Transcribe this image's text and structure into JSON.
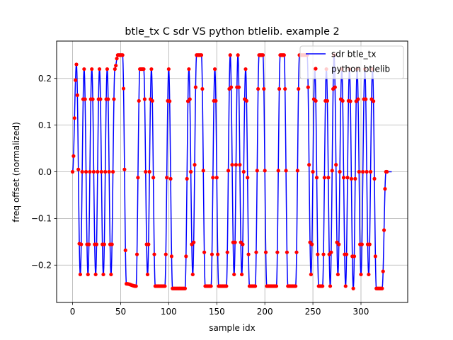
{
  "chart_data": {
    "type": "line",
    "title": "btle_tx C sdr VS python btlelib. example 2",
    "xlabel": "sample idx",
    "ylabel": "freq offset (normalized)",
    "xlim": [
      -16.6,
      348.6
    ],
    "ylim": [
      -0.28,
      0.28
    ],
    "xticks": [
      0,
      50,
      100,
      150,
      200,
      250,
      300
    ],
    "yticks": [
      -0.2,
      -0.1,
      0.0,
      0.1,
      0.2
    ],
    "xtick_labels": [
      "0",
      "50",
      "100",
      "150",
      "200",
      "250",
      "300"
    ],
    "ytick_labels": [
      "−0.2",
      "−0.1",
      "0.0",
      "0.1",
      "0.2"
    ],
    "grid": true,
    "legend_position": "top-right",
    "series": [
      {
        "name": "sdr btle_tx",
        "style": "line",
        "color": "#0000ff"
      },
      {
        "name": "python btlelib",
        "style": "points",
        "color": "#ff0000"
      }
    ],
    "waveform": {
      "description_free": true,
      "samples": 332,
      "amplitude": 0.25,
      "segments": [
        [
          0,
          4,
          0.0,
          0.23
        ],
        [
          4,
          8,
          0.23,
          -0.22
        ],
        [
          8,
          12,
          -0.22,
          0.22
        ],
        [
          12,
          16,
          0.22,
          -0.22
        ],
        [
          16,
          20,
          -0.22,
          0.22
        ],
        [
          20,
          24,
          0.22,
          -0.22
        ],
        [
          24,
          28,
          -0.22,
          0.22
        ],
        [
          28,
          32,
          0.22,
          -0.22
        ],
        [
          32,
          36,
          -0.22,
          0.22
        ],
        [
          36,
          40,
          0.22,
          -0.22
        ],
        [
          40,
          44,
          -0.22,
          0.22
        ],
        [
          44,
          47,
          0.22,
          0.25
        ],
        [
          47,
          52,
          0.25,
          0.25
        ],
        [
          52,
          56,
          0.25,
          -0.24
        ],
        [
          56,
          66,
          -0.24,
          -0.245
        ],
        [
          66,
          70,
          -0.245,
          0.22
        ],
        [
          70,
          74,
          0.22,
          0.22
        ],
        [
          74,
          78,
          0.22,
          -0.22
        ],
        [
          78,
          82,
          -0.22,
          0.22
        ],
        [
          82,
          86,
          0.22,
          -0.245
        ],
        [
          86,
          96,
          -0.245,
          -0.245
        ],
        [
          96,
          100,
          -0.245,
          0.22
        ],
        [
          100,
          104,
          0.22,
          -0.25
        ],
        [
          104,
          117,
          -0.25,
          -0.25
        ],
        [
          117,
          121,
          -0.25,
          0.22
        ],
        [
          121,
          125,
          0.22,
          -0.22
        ],
        [
          125,
          129,
          -0.22,
          0.25
        ],
        [
          129,
          134,
          0.25,
          0.25
        ],
        [
          134,
          138,
          0.25,
          -0.245
        ],
        [
          138,
          144,
          -0.245,
          -0.245
        ],
        [
          144,
          148,
          -0.245,
          0.22
        ],
        [
          148,
          152,
          0.22,
          -0.245
        ],
        [
          152,
          160,
          -0.245,
          -0.245
        ],
        [
          160,
          164,
          -0.245,
          0.25
        ],
        [
          164,
          168,
          0.25,
          -0.22
        ],
        [
          168,
          172,
          -0.22,
          0.25
        ],
        [
          172,
          176,
          0.25,
          -0.22
        ],
        [
          176,
          180,
          -0.22,
          0.22
        ],
        [
          180,
          184,
          0.22,
          -0.245
        ],
        [
          184,
          190,
          -0.245,
          -0.245
        ],
        [
          190,
          194,
          -0.245,
          0.25
        ],
        [
          194,
          198,
          0.25,
          0.25
        ],
        [
          198,
          202,
          0.25,
          -0.245
        ],
        [
          202,
          212,
          -0.245,
          -0.245
        ],
        [
          212,
          216,
          -0.245,
          0.25
        ],
        [
          216,
          220,
          0.25,
          0.25
        ],
        [
          220,
          224,
          0.25,
          -0.245
        ],
        [
          224,
          232,
          -0.245,
          -0.245
        ],
        [
          232,
          236,
          -0.245,
          0.25
        ],
        [
          236,
          244,
          0.25,
          0.25
        ],
        [
          244,
          248,
          0.25,
          -0.22
        ],
        [
          248,
          252,
          -0.22,
          0.22
        ],
        [
          252,
          256,
          0.22,
          -0.245
        ],
        [
          256,
          260,
          -0.245,
          -0.245
        ],
        [
          260,
          264,
          -0.245,
          0.22
        ],
        [
          264,
          268,
          0.22,
          -0.245
        ],
        [
          268,
          272,
          -0.245,
          0.25
        ],
        [
          272,
          276,
          0.25,
          -0.22
        ],
        [
          276,
          280,
          -0.22,
          0.22
        ],
        [
          280,
          284,
          0.22,
          -0.245
        ],
        [
          284,
          288,
          -0.245,
          0.22
        ],
        [
          288,
          292,
          0.22,
          -0.25
        ],
        [
          292,
          296,
          -0.25,
          0.22
        ],
        [
          296,
          300,
          0.22,
          -0.22
        ],
        [
          300,
          304,
          -0.22,
          0.22
        ],
        [
          304,
          308,
          0.22,
          -0.22
        ],
        [
          308,
          312,
          -0.22,
          0.22
        ],
        [
          312,
          316,
          0.22,
          -0.25
        ],
        [
          316,
          322,
          -0.25,
          -0.25
        ],
        [
          322,
          326,
          -0.25,
          0.0
        ],
        [
          326,
          332,
          0.0,
          0.0
        ]
      ]
    }
  }
}
